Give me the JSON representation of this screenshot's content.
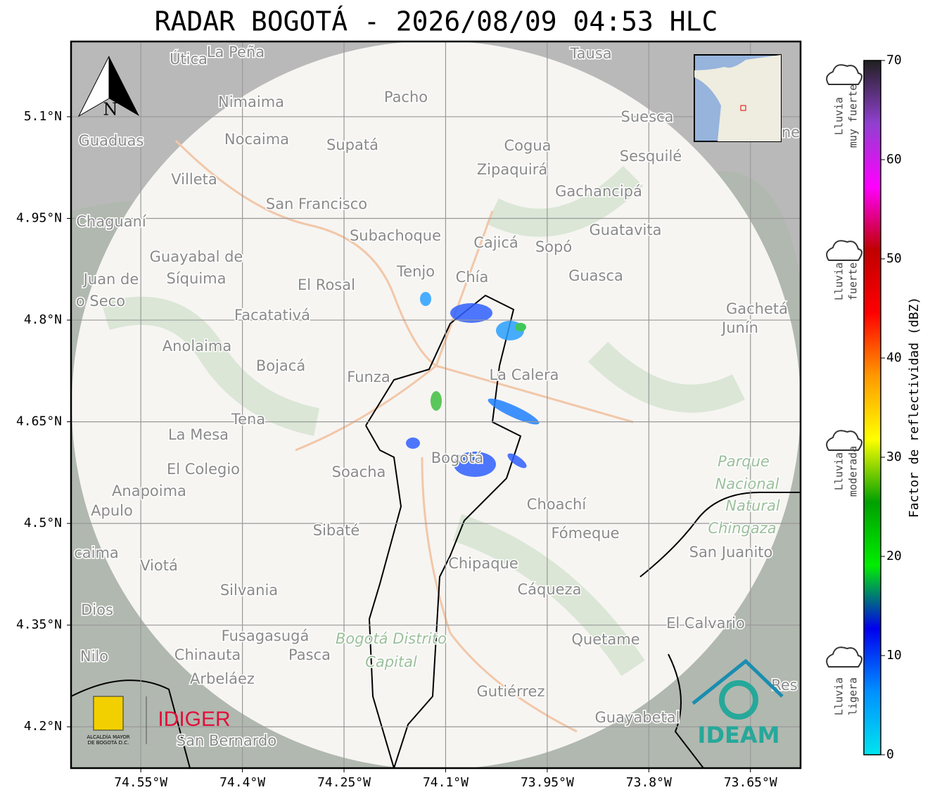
{
  "title": "RADAR BOGOTÁ - 2026/08/09 04:53 HLC",
  "map": {
    "xlim": [
      -74.653,
      -73.576
    ],
    "ylim": [
      4.139,
      5.211
    ],
    "xticks": [
      {
        "value": -74.55,
        "label": "74.55°W"
      },
      {
        "value": -74.4,
        "label": "74.4°W"
      },
      {
        "value": -74.25,
        "label": "74.25°W"
      },
      {
        "value": -74.1,
        "label": "74.1°W"
      },
      {
        "value": -73.95,
        "label": "73.95°W"
      },
      {
        "value": -73.8,
        "label": "73.8°W"
      },
      {
        "value": -73.65,
        "label": "73.65°W"
      }
    ],
    "yticks": [
      {
        "value": 5.1,
        "label": "5.1°N"
      },
      {
        "value": 4.95,
        "label": "4.95°N"
      },
      {
        "value": 4.8,
        "label": "4.8°N"
      },
      {
        "value": 4.65,
        "label": "4.65°N"
      },
      {
        "value": 4.5,
        "label": "4.5°N"
      },
      {
        "value": 4.35,
        "label": "4.35°N"
      },
      {
        "value": 4.2,
        "label": "4.2°N"
      }
    ],
    "grid": true,
    "north": "N",
    "places": [
      "Útica",
      "La Peña",
      "Tausa",
      "Pacho",
      "Nimaima",
      "Guaduas",
      "Nocaima",
      "Supatá",
      "Cogua",
      "Suesca",
      "Sesquilé",
      "Zipaquirá",
      "Villeta",
      "Gachancipá",
      "San Francisco",
      "Chaguaní",
      "Guatavita",
      "Subachoque",
      "Cajicá",
      "Sopó",
      "Guayabal de",
      "Síquima",
      "Tenjo",
      "Chía",
      "Guasca",
      "Juan de",
      "o Seco",
      "El Rosal",
      "Facatativá",
      "Gachetá",
      "Junín",
      "Anolaima",
      "Bojacá",
      "Funza",
      "La Calera",
      "Tena",
      "La Mesa",
      "El Colegio",
      "Soacha",
      "Anapoima",
      "Apulo",
      "Choachí",
      "Sibaté",
      "Fómeque",
      "San Juanito",
      "caima",
      "Viotá",
      "Chipaque",
      "Silvania",
      "Cáqueza",
      "Dios",
      "El Calvario",
      "Fusagasugá",
      "Quetame",
      "Nilo",
      "Chinauta",
      "Pasca",
      "Arbeláez",
      "Gutiérrez",
      "Guayabetal",
      "San Bernardo",
      "Bogotá",
      "Res",
      "ne"
    ],
    "parks": [
      "Parque",
      "Nacional",
      "Natural",
      "Chingaza",
      "Bogotá Distrito",
      "Capital"
    ]
  },
  "logos": {
    "alcaldia": [
      "ALCALDÍA MAYOR",
      "DE BOGOTÁ D.C."
    ],
    "idiger": "IDIGER",
    "ideam": "IDEAM"
  },
  "colorbar": {
    "label": "Factor de reflectividad (dBZ)",
    "ylim": [
      0,
      70
    ],
    "yticks": [
      0,
      10,
      20,
      30,
      40,
      50,
      60,
      70
    ],
    "colors": [
      "#00e5ee",
      "#0090ff",
      "#0000ee",
      "#00ee00",
      "#00a000",
      "#ffff00",
      "#ff9900",
      "#ff0000",
      "#c00000",
      "#ff00ff",
      "#9040d0",
      "#202020"
    ]
  },
  "legend": [
    [
      "Lluvia",
      "muy fuerte"
    ],
    [
      "Lluvia",
      "fuerte"
    ],
    [
      "Lluvia",
      "moderada"
    ],
    [
      "Lluvia",
      "ligera"
    ]
  ]
}
